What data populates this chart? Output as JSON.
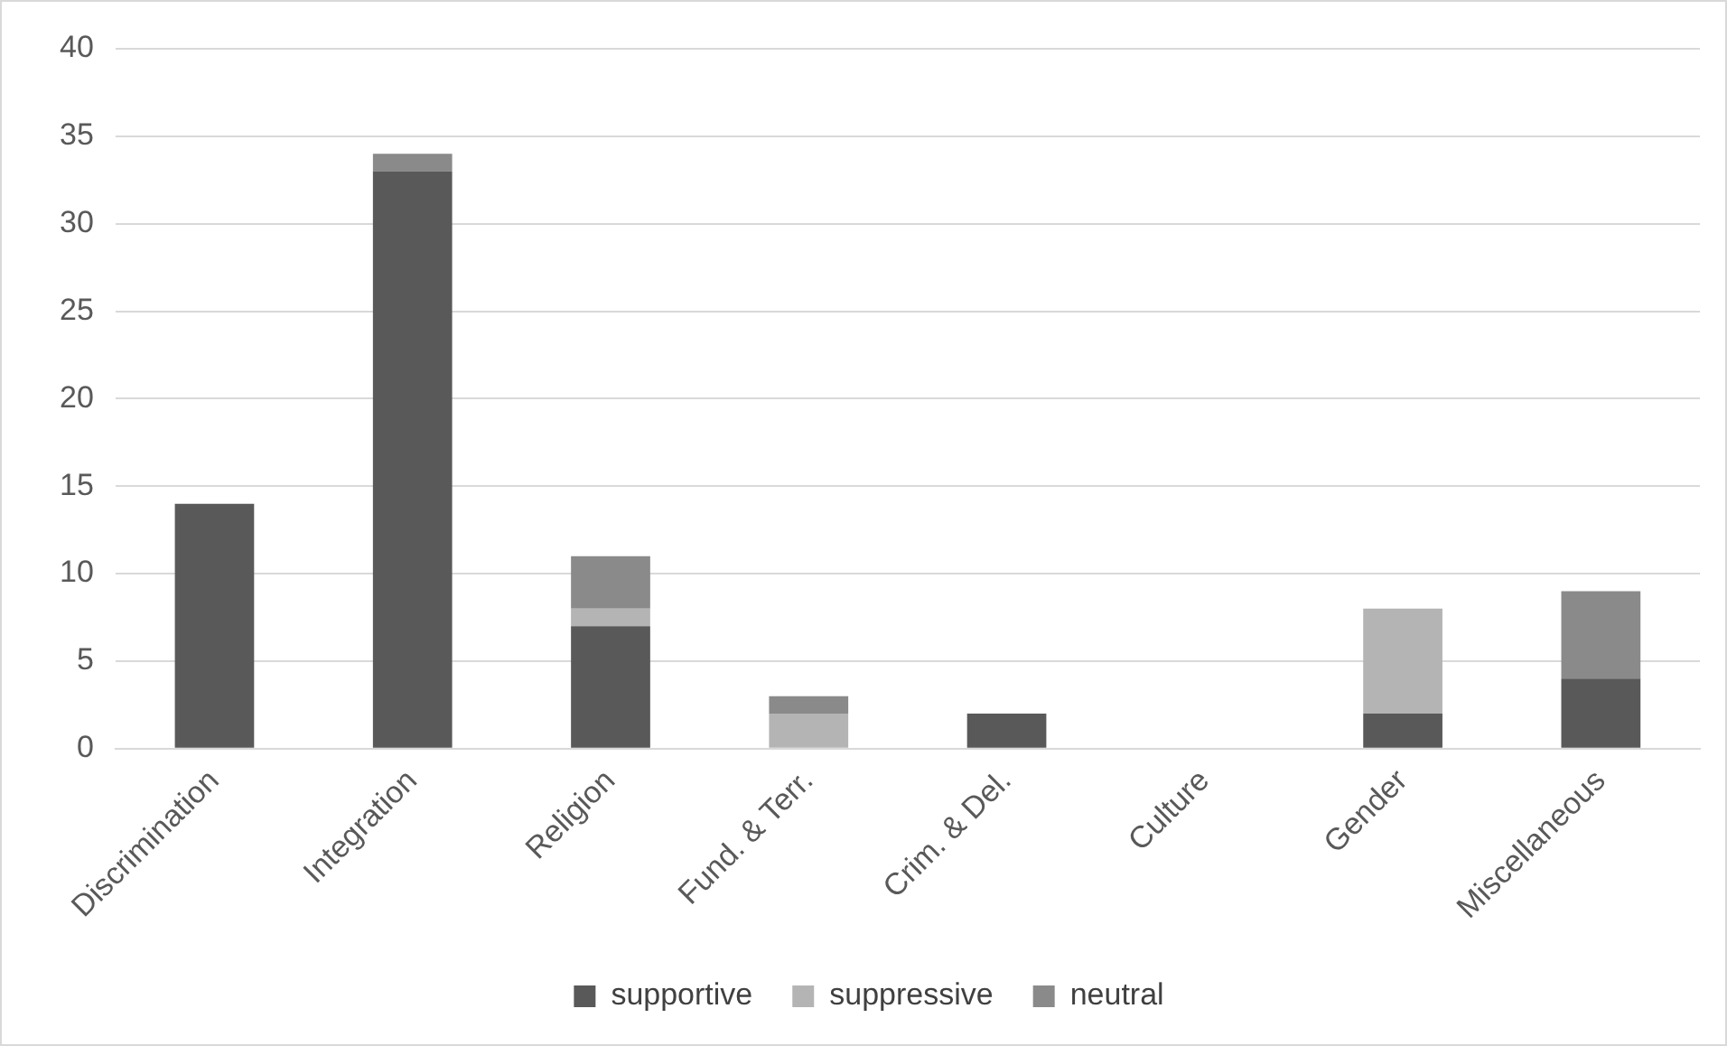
{
  "chart_data": {
    "type": "bar",
    "stacked": true,
    "categories": [
      "Discrimination",
      "Integration",
      "Religion",
      "Fund. & Terr.",
      "Crim. & Del.",
      "Culture",
      "Gender",
      "Miscellaneous"
    ],
    "series": [
      {
        "name": "supportive",
        "color": "#595959",
        "values": [
          14,
          33,
          7,
          0,
          2,
          0,
          2,
          4
        ]
      },
      {
        "name": "suppressive",
        "color": "#b4b4b4",
        "values": [
          0,
          0,
          1,
          2,
          0,
          0,
          6,
          0
        ]
      },
      {
        "name": "neutral",
        "color": "#8a8a8a",
        "values": [
          0,
          1,
          3,
          1,
          0,
          0,
          0,
          5
        ]
      }
    ],
    "ylim": [
      0,
      40
    ],
    "yticks": [
      0,
      5,
      10,
      15,
      20,
      25,
      30,
      35,
      40
    ],
    "grid": "y",
    "legend": "bottom"
  }
}
